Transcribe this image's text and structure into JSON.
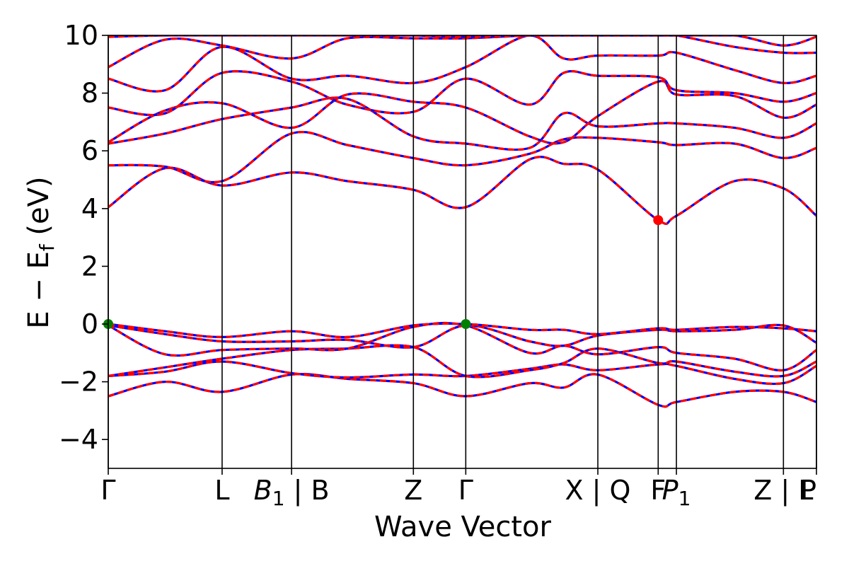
{
  "chart_data": {
    "type": "line",
    "xlabel": "Wave Vector",
    "ylabel": "E − E",
    "ylabel_sub": "f",
    "ylabel_unit": " (eV)",
    "ylim": [
      -5,
      10
    ],
    "yticks": [
      -4,
      -2,
      0,
      2,
      4,
      6,
      8,
      10
    ],
    "ytick_labels": [
      "−4",
      "−2",
      "0",
      "2",
      "4",
      "6",
      "8",
      "10"
    ],
    "xlim": [
      0,
      6.22
    ],
    "high_symmetry_points": [
      {
        "x": 0.0,
        "label": "Γ"
      },
      {
        "x": 1.0,
        "label": "L"
      },
      {
        "x": 1.61,
        "label": "B",
        "sub": "1",
        "suffix": " | B"
      },
      {
        "x": 2.68,
        "label": "Z"
      },
      {
        "x": 3.14,
        "label": "Γ"
      },
      {
        "x": 4.3,
        "label": "X | Q"
      },
      {
        "x": 4.83,
        "label": "F"
      },
      {
        "x": 4.99,
        "label": "P",
        "sub": "1"
      },
      {
        "x": 5.93,
        "label": "Z | L"
      },
      {
        "x": 6.22,
        "label": "P"
      }
    ],
    "series_style": {
      "primary": "#ff0000",
      "overlay": "#0000ff"
    },
    "cbm": {
      "x": 4.83,
      "y": 3.6,
      "color": "#ff0000"
    },
    "vbm": [
      {
        "x": 0.0,
        "y": 0.0,
        "color": "#008000"
      },
      {
        "x": 3.14,
        "y": 0.0,
        "color": "#008000"
      }
    ],
    "bands": [
      {
        "name": "v1",
        "points": [
          [
            0,
            -2.5
          ],
          [
            0.5,
            -2.0
          ],
          [
            1.0,
            -2.35
          ],
          [
            1.61,
            -1.75
          ],
          [
            2.1,
            -1.9
          ],
          [
            2.68,
            -2.05
          ],
          [
            3.14,
            -2.5
          ],
          [
            3.7,
            -2.05
          ],
          [
            4.0,
            -2.2
          ],
          [
            4.3,
            -1.75
          ],
          [
            4.83,
            -2.8
          ],
          [
            4.99,
            -2.7
          ],
          [
            5.5,
            -2.35
          ],
          [
            5.93,
            -2.35
          ],
          [
            6.22,
            -2.7
          ]
        ]
      },
      {
        "name": "v2",
        "points": [
          [
            0,
            -1.8
          ],
          [
            0.5,
            -1.65
          ],
          [
            1.0,
            -1.3
          ],
          [
            1.61,
            -1.7
          ],
          [
            2.1,
            -1.85
          ],
          [
            2.68,
            -1.75
          ],
          [
            3.14,
            -1.8
          ],
          [
            3.7,
            -1.55
          ],
          [
            4.0,
            -1.4
          ],
          [
            4.3,
            -1.6
          ],
          [
            4.83,
            -1.4
          ],
          [
            4.99,
            -1.45
          ],
          [
            5.5,
            -1.9
          ],
          [
            5.93,
            -2.05
          ],
          [
            6.22,
            -1.45
          ]
        ]
      },
      {
        "name": "v3",
        "points": [
          [
            0,
            -1.8
          ],
          [
            0.5,
            -1.5
          ],
          [
            1.0,
            -1.2
          ],
          [
            1.61,
            -0.9
          ],
          [
            2.1,
            -0.85
          ],
          [
            2.68,
            -0.8
          ],
          [
            3.14,
            -1.8
          ],
          [
            3.7,
            -1.6
          ],
          [
            4.0,
            -1.35
          ],
          [
            4.3,
            -0.85
          ],
          [
            4.83,
            -1.35
          ],
          [
            4.99,
            -1.3
          ],
          [
            5.5,
            -1.65
          ],
          [
            5.93,
            -1.8
          ],
          [
            6.22,
            -1.3
          ]
        ]
      },
      {
        "name": "v4",
        "points": [
          [
            0,
            -0.05
          ],
          [
            0.5,
            -1.05
          ],
          [
            1.0,
            -0.9
          ],
          [
            1.61,
            -0.85
          ],
          [
            2.1,
            -0.85
          ],
          [
            2.68,
            -0.1
          ],
          [
            3.14,
            -0.05
          ],
          [
            3.7,
            -1.0
          ],
          [
            4.0,
            -0.75
          ],
          [
            4.3,
            -1.05
          ],
          [
            4.83,
            -0.8
          ],
          [
            4.99,
            -1.0
          ],
          [
            5.5,
            -1.2
          ],
          [
            5.93,
            -1.6
          ],
          [
            6.22,
            -0.9
          ]
        ]
      },
      {
        "name": "v5",
        "points": [
          [
            0,
            -0.05
          ],
          [
            0.5,
            -0.35
          ],
          [
            1.0,
            -0.6
          ],
          [
            1.61,
            -0.6
          ],
          [
            2.1,
            -0.55
          ],
          [
            2.68,
            -0.8
          ],
          [
            3.14,
            -0.05
          ],
          [
            3.7,
            -0.6
          ],
          [
            4.0,
            -0.75
          ],
          [
            4.3,
            -0.4
          ],
          [
            4.83,
            -0.2
          ],
          [
            4.99,
            -0.25
          ],
          [
            5.5,
            -0.2
          ],
          [
            5.93,
            -0.05
          ],
          [
            6.22,
            -0.65
          ]
        ]
      },
      {
        "name": "v6",
        "points": [
          [
            0,
            0.0
          ],
          [
            0.5,
            -0.25
          ],
          [
            1.0,
            -0.45
          ],
          [
            1.61,
            -0.25
          ],
          [
            2.1,
            -0.45
          ],
          [
            2.68,
            -0.05
          ],
          [
            3.14,
            0.0
          ],
          [
            3.7,
            -0.2
          ],
          [
            4.0,
            -0.2
          ],
          [
            4.3,
            -0.35
          ],
          [
            4.83,
            -0.15
          ],
          [
            4.99,
            -0.2
          ],
          [
            5.5,
            -0.1
          ],
          [
            5.93,
            -0.15
          ],
          [
            6.22,
            -0.25
          ]
        ]
      },
      {
        "name": "c1",
        "points": [
          [
            0,
            4.05
          ],
          [
            0.5,
            5.4
          ],
          [
            1.0,
            4.8
          ],
          [
            1.61,
            5.25
          ],
          [
            2.1,
            4.95
          ],
          [
            2.68,
            4.65
          ],
          [
            3.14,
            4.05
          ],
          [
            3.7,
            5.7
          ],
          [
            4.0,
            5.55
          ],
          [
            4.3,
            5.35
          ],
          [
            4.83,
            3.6
          ],
          [
            4.99,
            3.75
          ],
          [
            5.5,
            4.95
          ],
          [
            5.93,
            4.7
          ],
          [
            6.22,
            3.75
          ]
        ]
      },
      {
        "name": "c2",
        "points": [
          [
            0,
            5.5
          ],
          [
            0.5,
            5.45
          ],
          [
            1.0,
            4.95
          ],
          [
            1.61,
            6.6
          ],
          [
            2.1,
            6.2
          ],
          [
            2.68,
            5.75
          ],
          [
            3.14,
            5.5
          ],
          [
            3.7,
            5.9
          ],
          [
            4.0,
            6.4
          ],
          [
            4.3,
            6.45
          ],
          [
            4.83,
            6.3
          ],
          [
            4.99,
            6.2
          ],
          [
            5.5,
            6.25
          ],
          [
            5.93,
            5.75
          ],
          [
            6.22,
            6.1
          ]
        ]
      },
      {
        "name": "c3",
        "points": [
          [
            0,
            6.25
          ],
          [
            0.5,
            6.6
          ],
          [
            1.0,
            7.1
          ],
          [
            1.61,
            7.5
          ],
          [
            2.1,
            7.8
          ],
          [
            2.68,
            6.5
          ],
          [
            3.14,
            6.25
          ],
          [
            3.7,
            6.1
          ],
          [
            4.0,
            7.3
          ],
          [
            4.3,
            6.85
          ],
          [
            4.83,
            6.95
          ],
          [
            4.99,
            6.95
          ],
          [
            5.5,
            6.8
          ],
          [
            5.93,
            6.45
          ],
          [
            6.22,
            6.95
          ]
        ]
      },
      {
        "name": "c4",
        "points": [
          [
            0,
            6.3
          ],
          [
            0.5,
            7.4
          ],
          [
            1.0,
            7.65
          ],
          [
            1.61,
            6.8
          ],
          [
            2.1,
            7.95
          ],
          [
            2.68,
            7.7
          ],
          [
            3.14,
            7.5
          ],
          [
            3.7,
            6.5
          ],
          [
            4.0,
            6.3
          ],
          [
            4.3,
            7.2
          ],
          [
            4.83,
            8.4
          ],
          [
            4.99,
            7.95
          ],
          [
            5.5,
            7.9
          ],
          [
            5.93,
            7.15
          ],
          [
            6.22,
            7.6
          ]
        ]
      },
      {
        "name": "c5",
        "points": [
          [
            0,
            7.5
          ],
          [
            0.5,
            7.3
          ],
          [
            1.0,
            8.7
          ],
          [
            1.61,
            8.4
          ],
          [
            2.1,
            7.6
          ],
          [
            2.68,
            7.35
          ],
          [
            3.14,
            8.5
          ],
          [
            3.7,
            7.6
          ],
          [
            4.0,
            8.7
          ],
          [
            4.3,
            8.6
          ],
          [
            4.83,
            8.55
          ],
          [
            4.99,
            8.1
          ],
          [
            5.5,
            8.0
          ],
          [
            5.93,
            7.7
          ],
          [
            6.22,
            8.0
          ]
        ]
      },
      {
        "name": "c6",
        "points": [
          [
            0,
            8.5
          ],
          [
            0.5,
            8.1
          ],
          [
            1.0,
            9.6
          ],
          [
            1.61,
            8.5
          ],
          [
            2.1,
            8.6
          ],
          [
            2.68,
            8.35
          ],
          [
            3.14,
            8.9
          ],
          [
            3.7,
            10.0
          ],
          [
            4.0,
            9.2
          ],
          [
            4.3,
            9.3
          ],
          [
            4.83,
            9.3
          ],
          [
            4.99,
            9.4
          ],
          [
            5.5,
            8.8
          ],
          [
            5.93,
            8.35
          ],
          [
            6.22,
            8.6
          ]
        ]
      },
      {
        "name": "c7",
        "points": [
          [
            0,
            8.9
          ],
          [
            0.5,
            9.85
          ],
          [
            1.0,
            9.65
          ],
          [
            1.61,
            9.2
          ],
          [
            2.1,
            9.9
          ],
          [
            2.68,
            9.9
          ],
          [
            3.14,
            9.9
          ],
          [
            3.7,
            10.0
          ],
          [
            4.0,
            10.0
          ],
          [
            4.3,
            10.0
          ],
          [
            4.83,
            10.0
          ],
          [
            4.99,
            10.0
          ],
          [
            5.5,
            9.6
          ],
          [
            5.93,
            9.4
          ],
          [
            6.22,
            9.4
          ]
        ]
      },
      {
        "name": "c8",
        "points": [
          [
            0,
            9.95
          ],
          [
            0.5,
            10.0
          ],
          [
            1.0,
            10.0
          ],
          [
            1.61,
            10.0
          ],
          [
            2.1,
            10.0
          ],
          [
            2.68,
            10.0
          ],
          [
            3.14,
            9.95
          ],
          [
            3.7,
            10.0
          ],
          [
            4.0,
            10.0
          ],
          [
            4.3,
            10.0
          ],
          [
            4.83,
            10.0
          ],
          [
            4.99,
            10.0
          ],
          [
            5.5,
            10.0
          ],
          [
            5.93,
            9.65
          ],
          [
            6.22,
            9.95
          ]
        ]
      }
    ]
  }
}
